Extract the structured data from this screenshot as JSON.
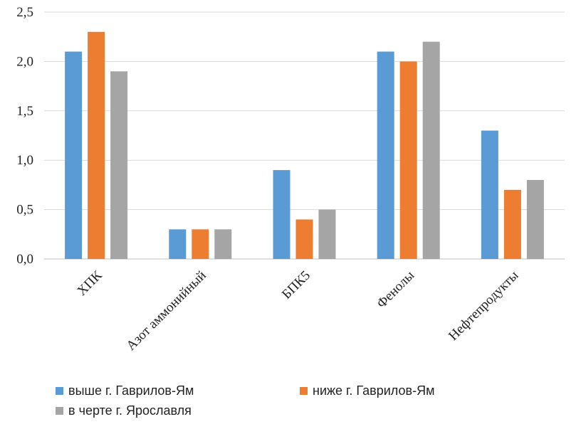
{
  "chart_data": {
    "type": "bar",
    "categories": [
      "ХПК",
      "Азот аммонийный",
      "БПК5",
      "Фенолы",
      "Нефтепродукты"
    ],
    "series": [
      {
        "name": "выше г. Гаврилов-Ям",
        "color": "#5b9bd5",
        "values": [
          2.1,
          0.3,
          0.9,
          2.1,
          1.3
        ]
      },
      {
        "name": "ниже г. Гаврилов-Ям",
        "color": "#ed7d31",
        "values": [
          2.3,
          0.3,
          0.4,
          2.0,
          0.7
        ]
      },
      {
        "name": "в черте г. Ярославля",
        "color": "#a5a5a5",
        "values": [
          1.9,
          0.3,
          0.5,
          2.2,
          0.8
        ]
      }
    ],
    "ylim": [
      0,
      2.5
    ],
    "yticks": [
      "0,0",
      "0,5",
      "1,0",
      "1,5",
      "2,0",
      "2,5"
    ],
    "grid": true,
    "legend_position": "bottom"
  }
}
